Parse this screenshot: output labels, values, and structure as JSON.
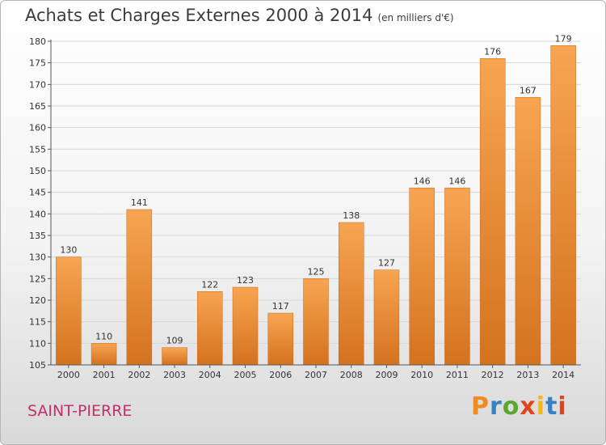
{
  "title": "Achats et Charges Externes 2000 à 2014",
  "unit_label": "(en milliers d'€)",
  "place": "SAINT-PIERRE",
  "logo_text": "Proxiti",
  "colors": {
    "bar_light": "#f7a551",
    "bar_dark": "#d4721f",
    "grid": "#d8d8d8",
    "axis": "#555555",
    "place": "#c0306a",
    "logo_letters": [
      "#f08a24",
      "#3a7fc1",
      "#5aa832",
      "#e2431e",
      "#f0b820",
      "#3a7fc1",
      "#e2431e"
    ]
  },
  "chart_data": {
    "type": "bar",
    "categories": [
      "2000",
      "2001",
      "2002",
      "2003",
      "2004",
      "2005",
      "2006",
      "2007",
      "2008",
      "2009",
      "2010",
      "2011",
      "2012",
      "2013",
      "2014"
    ],
    "values": [
      130,
      110,
      141,
      109,
      122,
      123,
      117,
      125,
      138,
      127,
      146,
      146,
      176,
      167,
      179
    ],
    "ylim": [
      105,
      180
    ],
    "yticks": [
      105,
      110,
      115,
      120,
      125,
      130,
      135,
      140,
      145,
      150,
      155,
      160,
      165,
      170,
      175,
      180
    ],
    "grid": true,
    "data_labels": true
  }
}
